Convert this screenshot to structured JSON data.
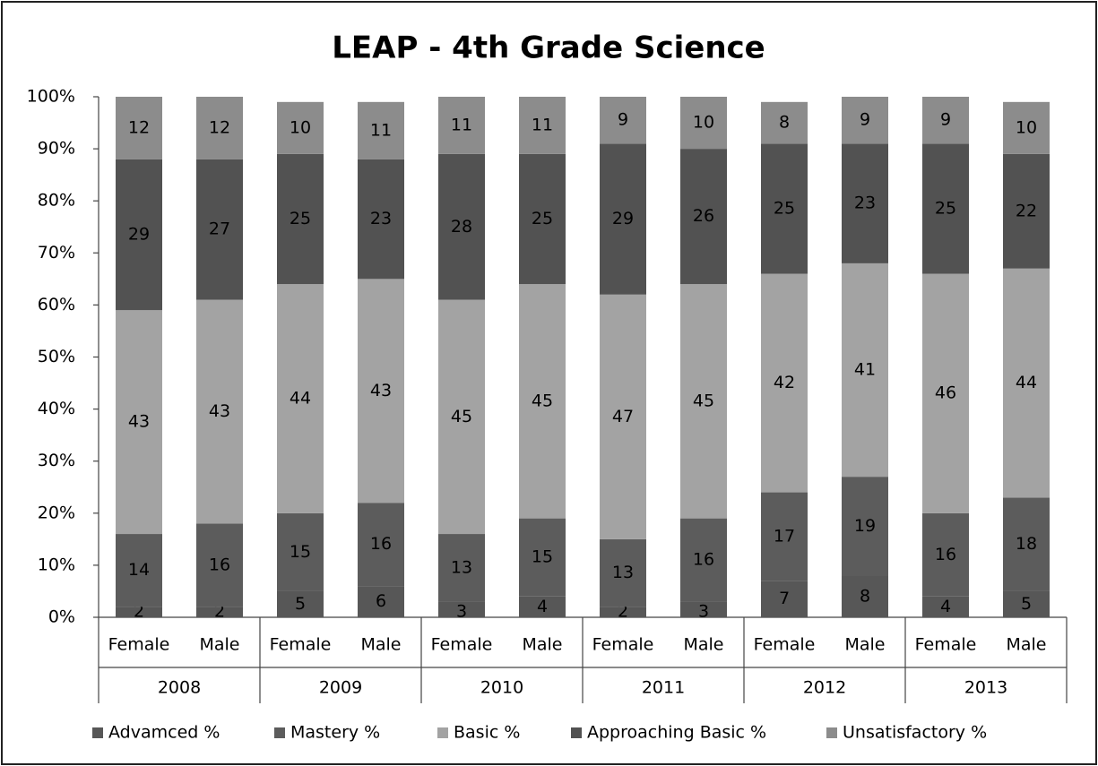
{
  "chart_data": {
    "type": "stacked_bar",
    "title": "LEAP - 4th Grade Science",
    "categories": [
      "Female",
      "Male",
      "Female",
      "Male",
      "Female",
      "Male",
      "Female",
      "Male",
      "Female",
      "Male",
      "Female",
      "Male"
    ],
    "groups": [
      "2008",
      "2009",
      "2010",
      "2011",
      "2012",
      "2013"
    ],
    "series": [
      {
        "name": "Advamced %",
        "color": "#575757",
        "values": [
          2,
          2,
          5,
          6,
          3,
          4,
          2,
          3,
          7,
          8,
          4,
          5
        ]
      },
      {
        "name": "Mastery %",
        "color": "#5c5c5c",
        "values": [
          14,
          16,
          15,
          16,
          13,
          15,
          13,
          16,
          17,
          19,
          16,
          18
        ]
      },
      {
        "name": "Basic %",
        "color": "#a3a3a3",
        "values": [
          43,
          43,
          44,
          43,
          45,
          45,
          47,
          45,
          42,
          41,
          46,
          44
        ]
      },
      {
        "name": "Approaching Basic %",
        "color": "#525252",
        "values": [
          29,
          27,
          25,
          23,
          28,
          25,
          29,
          26,
          25,
          23,
          25,
          22
        ]
      },
      {
        "name": "Unsatisfactory %",
        "color": "#8c8c8c",
        "values": [
          12,
          12,
          10,
          11,
          11,
          11,
          9,
          10,
          8,
          9,
          9,
          10
        ]
      }
    ],
    "ylim": [
      0,
      100
    ],
    "yticks": [
      {
        "value": 0,
        "label": "0%"
      },
      {
        "value": 10,
        "label": "10%"
      },
      {
        "value": 20,
        "label": "20%"
      },
      {
        "value": 30,
        "label": "30%"
      },
      {
        "value": 40,
        "label": "40%"
      },
      {
        "value": 50,
        "label": "50%"
      },
      {
        "value": 60,
        "label": "60%"
      },
      {
        "value": 70,
        "label": "70%"
      },
      {
        "value": 80,
        "label": "80%"
      },
      {
        "value": 90,
        "label": "90%"
      },
      {
        "value": 100,
        "label": "100%"
      }
    ],
    "grid": false,
    "legend": "bottom"
  }
}
